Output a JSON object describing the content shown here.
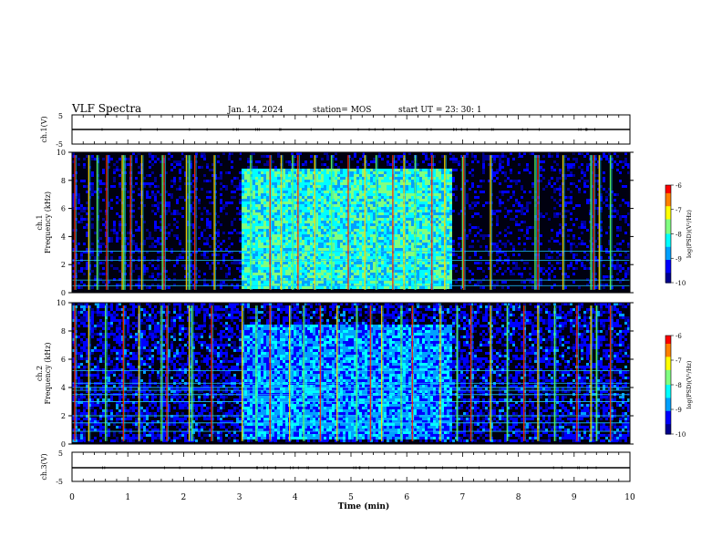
{
  "header": {
    "title": "VLF Spectra",
    "date": "Jan. 14, 2024",
    "station": "station= MOS",
    "start": "start UT = 23: 30: 1"
  },
  "chart_data": [
    {
      "type": "line",
      "panel": "ch1-waveform",
      "ylabel": "ch.1(V)",
      "ylim": [
        -5,
        5
      ],
      "yticks": [
        "5",
        "-5"
      ],
      "x": [
        0,
        10
      ],
      "y": [
        0,
        0
      ]
    },
    {
      "type": "heatmap",
      "panel": "ch1-spectrogram",
      "ylabel": "ch.1\nFrequency (kHz)",
      "ylim": [
        0,
        10
      ],
      "yticks": [
        "0",
        "2",
        "4",
        "6",
        "8",
        "10"
      ],
      "xlim": [
        0,
        10
      ],
      "colorbar": {
        "label": "log(PSD)(V²/Hz)",
        "ticks": [
          "-6",
          "-7",
          "-8",
          "-9",
          "-10"
        ],
        "range": [
          -10,
          -6
        ]
      },
      "features": {
        "broadband_hiss": {
          "t_start": 3.0,
          "t_end": 6.8,
          "f_low": 0.4,
          "f_high": 9.0,
          "level": -8.2
        },
        "background_level": -10,
        "spheric_times": [
          0.05,
          0.3,
          0.45,
          0.62,
          0.9,
          0.93,
          1.05,
          1.25,
          1.62,
          1.65,
          2.05,
          2.1,
          2.2,
          2.55,
          3.2,
          3.55,
          3.75,
          3.95,
          4.05,
          4.35,
          4.65,
          4.95,
          5.25,
          5.45,
          5.75,
          5.95,
          6.15,
          6.45,
          6.68,
          7.0,
          7.02,
          7.5,
          8.3,
          8.35,
          8.8,
          9.3,
          9.35,
          9.45,
          9.65
        ],
        "tonal_lines_kHz": [
          0.5,
          0.9,
          2.3,
          2.95
        ]
      }
    },
    {
      "type": "heatmap",
      "panel": "ch2-spectrogram",
      "ylabel": "ch.2\nFrequency (kHz)",
      "ylim": [
        0,
        10
      ],
      "yticks": [
        "0",
        "2",
        "4",
        "6",
        "8",
        "10"
      ],
      "xlim": [
        0,
        10
      ],
      "colorbar": {
        "label": "log(PSD)(V²/Hz)",
        "ticks": [
          "-6",
          "-7",
          "-8",
          "-9",
          "-10"
        ],
        "range": [
          -10,
          -6
        ]
      },
      "features": {
        "broadband_hiss": {
          "t_start": 3.0,
          "t_end": 6.8,
          "f_low": 0.5,
          "f_high": 8.5,
          "level": -8.8
        },
        "background_level": -9.6,
        "spheric_times": [
          0.05,
          0.3,
          0.6,
          0.92,
          1.2,
          1.6,
          1.7,
          2.1,
          2.15,
          2.5,
          3.05,
          3.3,
          3.55,
          3.9,
          4.15,
          4.45,
          4.75,
          5.1,
          5.35,
          5.55,
          5.9,
          6.1,
          6.6,
          6.9,
          7.15,
          7.5,
          7.8,
          8.1,
          8.35,
          8.65,
          9.05,
          9.3,
          9.4,
          9.65
        ],
        "tonal_lines_kHz": [
          0.9,
          1.5,
          2.0,
          3.0,
          3.5,
          3.8,
          4.0,
          4.3,
          5.2
        ]
      }
    },
    {
      "type": "line",
      "panel": "ch3-waveform",
      "ylabel": "ch.3(V)",
      "ylim": [
        -5,
        5
      ],
      "yticks": [
        "5",
        "-5"
      ],
      "x": [
        0,
        10
      ],
      "y": [
        0,
        0
      ]
    }
  ],
  "xaxis": {
    "label": "Time (min)",
    "range": [
      0,
      10
    ],
    "ticks": [
      "0",
      "1",
      "2",
      "3",
      "4",
      "5",
      "6",
      "7",
      "8",
      "9",
      "10"
    ]
  },
  "colors": {
    "colormap": [
      "#00008f",
      "#0000ff",
      "#00a0ff",
      "#00ffff",
      "#80ff80",
      "#ffff00",
      "#ff8000",
      "#ff0000",
      "#ffffff"
    ],
    "background": "#000010"
  }
}
